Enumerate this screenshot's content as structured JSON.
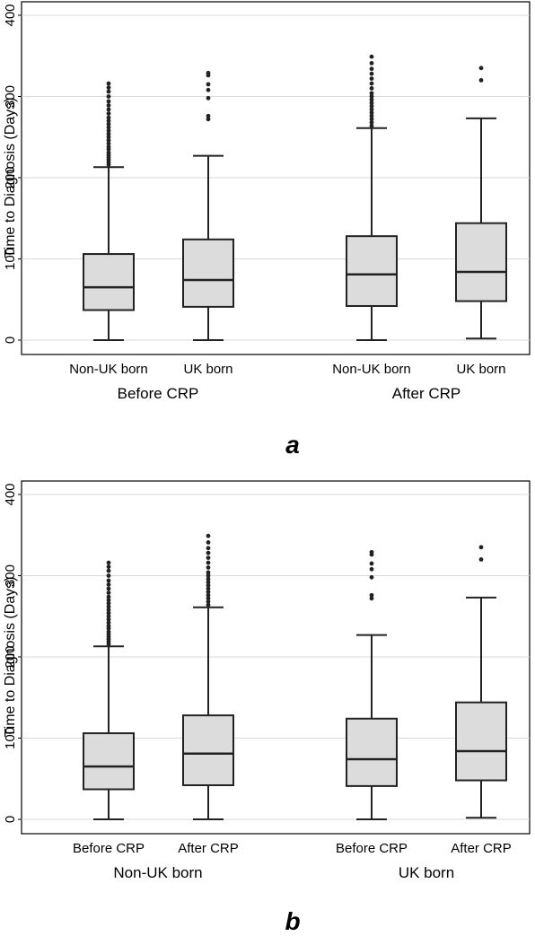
{
  "chart_data": [
    {
      "type": "box",
      "panel_label": "a",
      "ylabel": "Time to Diagnosis (Days)",
      "ylim": [
        0,
        400
      ],
      "yticks": [
        0,
        100,
        200,
        300,
        400
      ],
      "grid": true,
      "groups": [
        "Before CRP",
        "After CRP"
      ],
      "boxes": [
        {
          "category": "Non-UK born",
          "group": "Before CRP",
          "min": 0,
          "q1": 37,
          "median": 65,
          "q3": 106,
          "max": 213,
          "outliers": [
            216,
            219,
            222,
            225,
            228,
            231,
            235,
            238,
            242,
            246,
            250,
            254,
            258,
            262,
            266,
            270,
            274,
            279,
            284,
            289,
            294,
            300,
            306,
            311,
            316
          ]
        },
        {
          "category": "UK born",
          "group": "Before CRP",
          "min": 0,
          "q1": 41,
          "median": 74,
          "q3": 124,
          "max": 227,
          "outliers": [
            272,
            276,
            298,
            308,
            315,
            326,
            329
          ]
        },
        {
          "category": "Non-UK born",
          "group": "After CRP",
          "min": 0,
          "q1": 42,
          "median": 81,
          "q3": 128,
          "max": 261,
          "outliers": [
            264,
            268,
            272,
            276,
            280,
            284,
            288,
            292,
            296,
            300,
            304,
            310,
            316,
            322,
            328,
            334,
            341,
            349
          ]
        },
        {
          "category": "UK born",
          "group": "After CRP",
          "min": 2,
          "q1": 48,
          "median": 84,
          "q3": 144,
          "max": 273,
          "outliers": [
            320,
            335
          ]
        }
      ]
    },
    {
      "type": "box",
      "panel_label": "b",
      "ylabel": "Time to Diagnosis (Days)",
      "ylim": [
        0,
        400
      ],
      "yticks": [
        0,
        100,
        200,
        300,
        400
      ],
      "grid": true,
      "groups": [
        "Non-UK born",
        "UK born"
      ],
      "boxes": [
        {
          "category": "Before CRP",
          "group": "Non-UK born",
          "min": 0,
          "q1": 37,
          "median": 65,
          "q3": 106,
          "max": 213,
          "outliers": [
            216,
            219,
            222,
            225,
            228,
            231,
            235,
            238,
            242,
            246,
            250,
            254,
            258,
            262,
            266,
            270,
            274,
            279,
            284,
            289,
            294,
            300,
            306,
            311,
            316
          ]
        },
        {
          "category": "After CRP",
          "group": "Non-UK born",
          "min": 0,
          "q1": 42,
          "median": 81,
          "q3": 128,
          "max": 261,
          "outliers": [
            264,
            268,
            272,
            276,
            280,
            284,
            288,
            292,
            296,
            300,
            304,
            310,
            316,
            322,
            328,
            334,
            341,
            349
          ]
        },
        {
          "category": "Before CRP",
          "group": "UK born",
          "min": 0,
          "q1": 41,
          "median": 74,
          "q3": 124,
          "max": 227,
          "outliers": [
            272,
            276,
            298,
            308,
            315,
            326,
            329
          ]
        },
        {
          "category": "After CRP",
          "group": "UK born",
          "min": 2,
          "q1": 48,
          "median": 84,
          "q3": 144,
          "max": 273,
          "outliers": [
            320,
            335
          ]
        }
      ]
    }
  ],
  "colors": {
    "box_fill": "#dcdcdc",
    "box_stroke": "#222222",
    "outlier": "#222222",
    "grid": "#d9d9d9"
  }
}
